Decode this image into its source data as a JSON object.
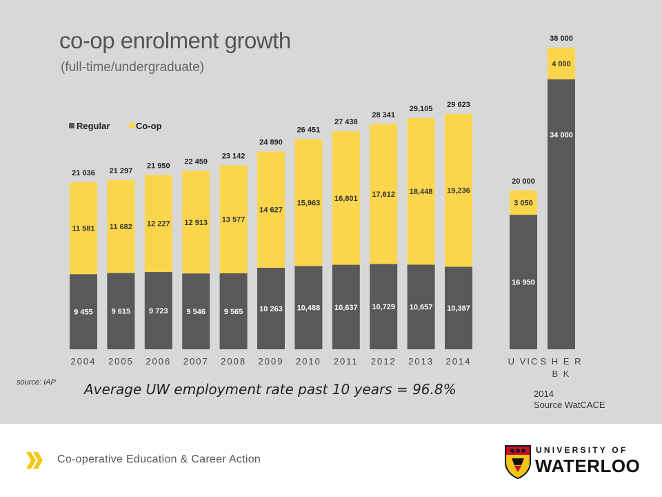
{
  "title": "co-op enrolment growth",
  "subtitle": "(full-time/undergraduate)",
  "source_left": "source: IAP",
  "average_note": "Average UW employment rate past 10 years = 96.8%",
  "source_right": [
    "2014",
    "Source WatCACE"
  ],
  "footer": {
    "text": "Co-operative Education & Career Action",
    "logo_top": "UNIVERSITY OF",
    "logo_name": "WATERLOO"
  },
  "colors": {
    "regular": "#595959",
    "coop": "#fbd64d",
    "background": "#d8d8d8",
    "chevron": "#f5c817"
  },
  "chart_data": [
    {
      "type": "bar",
      "stacked": true,
      "legend": "top-left",
      "categories": [
        "2004",
        "2005",
        "2006",
        "2007",
        "2008",
        "2009",
        "2010",
        "2011",
        "2012",
        "2013",
        "2014"
      ],
      "series": [
        {
          "name": "Regular",
          "values": [
            9455,
            9615,
            9723,
            9546,
            9565,
            10263,
            10488,
            10637,
            10729,
            10657,
            10387
          ],
          "labels": [
            "9 455",
            "9 615",
            "9 723",
            "9 546",
            "9 565",
            "10 263",
            "10,488",
            "10,637",
            "10,729",
            "10,657",
            "10,387"
          ]
        },
        {
          "name": "Co-op",
          "values": [
            11581,
            11682,
            12227,
            12913,
            13577,
            14627,
            15963,
            16801,
            17612,
            18448,
            19236
          ],
          "labels": [
            "11 581",
            "11 682",
            "12 227",
            "12 913",
            "13 577",
            "14 627",
            "15,963",
            "16,801",
            "17,612",
            "18,448",
            "19,236"
          ]
        }
      ],
      "totals": [
        21036,
        21297,
        21950,
        22459,
        23142,
        24890,
        26451,
        27438,
        28341,
        29105,
        29623
      ],
      "total_labels": [
        "21 036",
        "21 297",
        "21 950",
        "22 459",
        "23 142",
        "24 890",
        "26 451",
        "27 438",
        "28 341",
        "29,105",
        "29 623"
      ]
    },
    {
      "type": "bar",
      "stacked": true,
      "categories": [
        "U VIC",
        "SHER BK"
      ],
      "category_labels": [
        "U VIC",
        "S H E R\nB K"
      ],
      "series": [
        {
          "name": "Regular",
          "values": [
            16950,
            34000
          ],
          "labels": [
            "16 950",
            "34 000"
          ]
        },
        {
          "name": "Co-op",
          "values": [
            3050,
            4000
          ],
          "labels": [
            "3 050",
            "4 000"
          ]
        }
      ],
      "totals": [
        20000,
        38000
      ],
      "total_labels": [
        "20 000",
        "38 000"
      ]
    }
  ]
}
